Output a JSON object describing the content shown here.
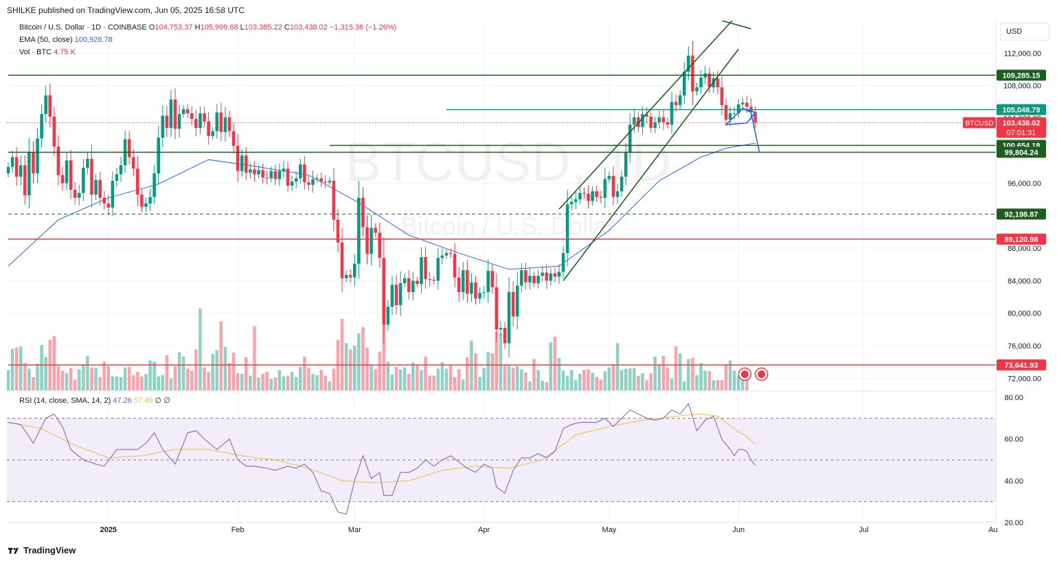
{
  "header": {
    "published": "SHILKE published on TradingView.com, Jun 05, 2025 16:58 UTC"
  },
  "legend": {
    "symbol": "Bitcoin / U.S. Dollar · 1D · COINBASE",
    "o_label": "O",
    "o_value": "104,753.37",
    "h_label": "H",
    "h_value": "105,999.68",
    "l_label": "L",
    "l_value": "103,385.22",
    "c_label": "C",
    "c_value": "103,438.02",
    "change": "−1,315.36 (−1.26%)",
    "ema_label": "EMA (50, close)",
    "ema_value": "100,926.78",
    "vol_label": "Vol · BTC",
    "vol_value": "4.75 K",
    "rsi_label": "RSI (14, close, SMA, 14, 2)",
    "rsi_value": "47.26",
    "rsi_sma_value": "57.49",
    "rsi_extra1": "∅",
    "rsi_extra2": "∅"
  },
  "watermark": {
    "symbol": "BTCUSD, 1D",
    "name": "Bitcoin / U.S. Dollar"
  },
  "currency": "USD",
  "footer": {
    "brand": "TradingView"
  },
  "colors": {
    "up": "#089981",
    "down": "#F23645",
    "ema": "#2962FF",
    "rsi": "#7E57C2",
    "rsi_sma": "#EDBF3F",
    "level_green": "#1B5E20",
    "level_teal": "#089981",
    "level_red": "#F23645",
    "drawing_blue": "#2962FF"
  },
  "chart_data": {
    "type": "candlestick",
    "timeframe": "1D",
    "ylim": [
      70500,
      116000
    ],
    "y_ticks": [
      "112,000.00",
      "108,000.00",
      "104,000.00",
      "100,000.00",
      "96,000.00",
      "92,000.00",
      "88,000.00",
      "84,000.00",
      "80,000.00",
      "76,000.00",
      "72,000.00"
    ],
    "y_tick_values": [
      112000,
      108000,
      104000,
      100000,
      96000,
      92000,
      88000,
      84000,
      80000,
      76000,
      72000
    ],
    "x_labels": [
      {
        "label": "2025",
        "day": 24
      },
      {
        "label": "Feb",
        "day": 55
      },
      {
        "label": "Mar",
        "day": 83
      },
      {
        "label": "Apr",
        "day": 114
      },
      {
        "label": "May",
        "day": 144
      },
      {
        "label": "Jun",
        "day": 175
      },
      {
        "label": "Jul",
        "day": 205
      },
      {
        "label": "Au",
        "day": 236
      }
    ],
    "x_range_days": [
      0,
      237
    ],
    "last_day": 179,
    "anchors": [
      [
        0,
        98000
      ],
      [
        1,
        99200
      ],
      [
        2,
        96800
      ],
      [
        3,
        98200
      ],
      [
        4,
        94500
      ],
      [
        5,
        99800
      ],
      [
        6,
        97200
      ],
      [
        7,
        101500
      ],
      [
        8,
        104500
      ],
      [
        9,
        106800
      ],
      [
        10,
        104200
      ],
      [
        11,
        100500
      ],
      [
        12,
        97000
      ],
      [
        13,
        96000
      ],
      [
        14,
        98800
      ],
      [
        15,
        95200
      ],
      [
        16,
        94200
      ],
      [
        17,
        94800
      ],
      [
        18,
        97900
      ],
      [
        19,
        99000
      ],
      [
        20,
        94600
      ],
      [
        21,
        96400
      ],
      [
        22,
        94200
      ],
      [
        23,
        93500
      ],
      [
        24,
        93000
      ],
      [
        25,
        96300
      ],
      [
        26,
        97100
      ],
      [
        27,
        98200
      ],
      [
        28,
        101400
      ],
      [
        29,
        99200
      ],
      [
        30,
        97800
      ],
      [
        31,
        94600
      ],
      [
        32,
        93100
      ],
      [
        33,
        93500
      ],
      [
        34,
        94300
      ],
      [
        35,
        97200
      ],
      [
        36,
        101600
      ],
      [
        37,
        104300
      ],
      [
        38,
        102800
      ],
      [
        39,
        106300
      ],
      [
        40,
        102700
      ],
      [
        41,
        104500
      ],
      [
        42,
        105100
      ],
      [
        43,
        104600
      ],
      [
        44,
        103900
      ],
      [
        45,
        102800
      ],
      [
        46,
        104600
      ],
      [
        47,
        103600
      ],
      [
        48,
        101800
      ],
      [
        49,
        102400
      ],
      [
        50,
        104700
      ],
      [
        51,
        102300
      ],
      [
        52,
        104100
      ],
      [
        53,
        102400
      ],
      [
        54,
        100600
      ],
      [
        55,
        97500
      ],
      [
        56,
        99400
      ],
      [
        57,
        97300
      ],
      [
        58,
        97700
      ],
      [
        59,
        97100
      ],
      [
        60,
        97600
      ],
      [
        61,
        96700
      ],
      [
        62,
        96600
      ],
      [
        63,
        97500
      ],
      [
        64,
        96500
      ],
      [
        65,
        97500
      ],
      [
        66,
        97800
      ],
      [
        67,
        95700
      ],
      [
        68,
        96200
      ],
      [
        69,
        96600
      ],
      [
        70,
        98300
      ],
      [
        71,
        96100
      ],
      [
        72,
        95800
      ],
      [
        73,
        96500
      ],
      [
        74,
        96600
      ],
      [
        75,
        96200
      ],
      [
        76,
        96100
      ],
      [
        77,
        96300
      ],
      [
        78,
        91500
      ],
      [
        79,
        88700
      ],
      [
        80,
        84300
      ],
      [
        81,
        84700
      ],
      [
        82,
        84400
      ],
      [
        83,
        86100
      ],
      [
        84,
        94200
      ],
      [
        85,
        90600
      ],
      [
        86,
        87300
      ],
      [
        87,
        90500
      ],
      [
        88,
        89900
      ],
      [
        89,
        86800
      ],
      [
        90,
        78600
      ],
      [
        91,
        80800
      ],
      [
        92,
        83500
      ],
      [
        93,
        81000
      ],
      [
        94,
        83700
      ],
      [
        95,
        84300
      ],
      [
        96,
        82600
      ],
      [
        97,
        84000
      ],
      [
        98,
        83600
      ],
      [
        99,
        86900
      ],
      [
        100,
        84200
      ],
      [
        101,
        84100
      ],
      [
        102,
        84000
      ],
      [
        103,
        86800
      ],
      [
        104,
        87100
      ],
      [
        105,
        87400
      ],
      [
        106,
        87300
      ],
      [
        107,
        84400
      ],
      [
        108,
        82600
      ],
      [
        109,
        85300
      ],
      [
        110,
        82400
      ],
      [
        111,
        83800
      ],
      [
        112,
        81800
      ],
      [
        113,
        82500
      ],
      [
        114,
        82600
      ],
      [
        115,
        85200
      ],
      [
        116,
        83200
      ],
      [
        117,
        78000
      ],
      [
        118,
        78200
      ],
      [
        119,
        76300
      ],
      [
        120,
        82600
      ],
      [
        121,
        79600
      ],
      [
        122,
        83400
      ],
      [
        123,
        85300
      ],
      [
        124,
        83800
      ],
      [
        125,
        84600
      ],
      [
        126,
        83700
      ],
      [
        127,
        84600
      ],
      [
        128,
        85000
      ],
      [
        129,
        84000
      ],
      [
        130,
        84900
      ],
      [
        131,
        84500
      ],
      [
        132,
        85100
      ],
      [
        133,
        87400
      ],
      [
        134,
        93400
      ],
      [
        135,
        93700
      ],
      [
        136,
        94000
      ],
      [
        137,
        94800
      ],
      [
        138,
        94700
      ],
      [
        139,
        93800
      ],
      [
        140,
        95000
      ],
      [
        141,
        94300
      ],
      [
        142,
        94200
      ],
      [
        143,
        96500
      ],
      [
        144,
        96900
      ],
      [
        145,
        94300
      ],
      [
        146,
        95000
      ],
      [
        147,
        96800
      ],
      [
        148,
        99800
      ],
      [
        149,
        103200
      ],
      [
        150,
        104100
      ],
      [
        151,
        102900
      ],
      [
        152,
        104500
      ],
      [
        153,
        104200
      ],
      [
        154,
        102800
      ],
      [
        155,
        103500
      ],
      [
        156,
        104100
      ],
      [
        157,
        103500
      ],
      [
        158,
        103200
      ],
      [
        159,
        106000
      ],
      [
        160,
        105600
      ],
      [
        161,
        106800
      ],
      [
        162,
        109700
      ],
      [
        163,
        111700
      ],
      [
        164,
        107300
      ],
      [
        165,
        107800
      ],
      [
        166,
        109000
      ],
      [
        167,
        109500
      ],
      [
        168,
        107800
      ],
      [
        169,
        108900
      ],
      [
        170,
        107800
      ],
      [
        171,
        105600
      ],
      [
        172,
        103800
      ],
      [
        173,
        104600
      ],
      [
        174,
        104600
      ],
      [
        175,
        105700
      ],
      [
        176,
        105900
      ],
      [
        177,
        105400
      ],
      [
        178,
        104750
      ],
      [
        179,
        103438
      ]
    ],
    "ema_points": [
      [
        0,
        85800
      ],
      [
        12,
        91500
      ],
      [
        24,
        94200
      ],
      [
        36,
        95900
      ],
      [
        48,
        98900
      ],
      [
        60,
        98000
      ],
      [
        72,
        97000
      ],
      [
        84,
        93600
      ],
      [
        96,
        89600
      ],
      [
        108,
        87400
      ],
      [
        120,
        85400
      ],
      [
        132,
        85800
      ],
      [
        144,
        90200
      ],
      [
        156,
        96300
      ],
      [
        166,
        99200
      ],
      [
        172,
        100300
      ],
      [
        176,
        100650
      ],
      [
        179,
        100927
      ]
    ],
    "levels": [
      {
        "name": "level-109285",
        "value": 109285.15,
        "label": "109,285.15",
        "color": "#1B5E20",
        "from_day": 0,
        "style": "solid"
      },
      {
        "name": "level-105048",
        "value": 105048.79,
        "label": "105,048.79",
        "color": "#089981",
        "from_day": 105,
        "style": "solid"
      },
      {
        "name": "level-100654",
        "value": 100654.18,
        "label": "100,654.18",
        "color": "#1B5E20",
        "from_day": 77,
        "style": "solid"
      },
      {
        "name": "level-99804",
        "value": 99804.24,
        "label": "99,804.24",
        "color": "#1B5E20",
        "from_day": 0,
        "style": "solid"
      },
      {
        "name": "level-92198",
        "value": 92198.87,
        "label": "92,198.87",
        "color": "#1B5E20",
        "from_day": 0,
        "style": "dashed"
      },
      {
        "name": "level-89120",
        "value": 89120.98,
        "label": "89,120.98",
        "color": "#F23645",
        "from_day": 0,
        "style": "solid"
      },
      {
        "name": "level-73641",
        "value": 73641.93,
        "label": "73,641.93",
        "color": "#F23645",
        "from_day": 0,
        "style": "solid"
      }
    ],
    "price_label": {
      "symbol": "BTCUSD",
      "value": "103,438.02",
      "countdown": "07:01:31",
      "price": 103438.02
    },
    "channel_lines": [
      {
        "d1": 133,
        "p1": 84000,
        "d2": 175,
        "p2": 112500
      },
      {
        "d1": 132,
        "p1": 92800,
        "d2": 174,
        "p2": 116300
      },
      {
        "d1": 178,
        "p1": 115000,
        "d2": 171,
        "p2": 116000
      }
    ],
    "flag": [
      [
        172,
        103200
      ],
      [
        176,
        105200
      ],
      [
        179,
        104700
      ],
      [
        177,
        103400
      ]
    ],
    "projection": [
      [
        176,
        105200
      ],
      [
        178,
        104700
      ],
      [
        180,
        99800
      ]
    ],
    "volume": [
      3.2,
      6.5,
      6.7,
      6.9,
      4.3,
      3.4,
      2.1,
      4.2,
      7.1,
      5.2,
      7.9,
      8.5,
      3.8,
      3.1,
      2.7,
      3.5,
      1.7,
      3.3,
      4.1,
      5.4,
      3.6,
      3.5,
      2.1,
      4.5,
      3.8,
      2.2,
      2.2,
      2.1,
      3.6,
      3.7,
      2.4,
      2.9,
      2.2,
      2.6,
      4.7,
      4.5,
      2.2,
      2.4,
      5.5,
      1.9,
      3.8,
      6.0,
      5.3,
      3.4,
      3.1,
      6.4,
      12.8,
      3.6,
      2.9,
      5.7,
      6.3,
      10.8,
      6.8,
      4.3,
      5.9,
      2.7,
      2.6,
      5.2,
      2.3,
      10.0,
      2.0,
      2.6,
      2.9,
      1.8,
      2.0,
      3.2,
      2.2,
      2.3,
      2.9,
      2.1,
      3.7,
      5.3,
      3.5,
      2.6,
      2.4,
      3.2,
      2.3,
      1.4,
      3.4,
      7.9,
      11.2,
      7.4,
      6.4,
      7.0,
      8.9,
      9.9,
      6.7,
      4.1,
      3.3,
      6.1,
      11.2,
      4.5,
      2.5,
      3.7,
      3.3,
      3.6,
      2.6,
      4.4,
      3.9,
      3.2,
      5.3,
      2.3,
      2.3,
      3.4,
      4.4,
      3.4,
      3.9,
      2.1,
      3.3,
      1.7,
      5.2,
      7.8,
      5.8,
      2.1,
      3.5,
      6.0,
      5.8,
      9.2,
      8.9,
      4.0,
      3.9,
      3.5,
      3.8,
      3.3,
      2.8,
      1.4,
      4.9,
      3.2,
      1.5,
      1.3,
      7.5,
      8.4,
      5.1,
      3.1,
      2.3,
      3.2,
      1.6,
      2.6,
      3.2,
      3.3,
      2.8,
      2.1,
      1.7,
      3.0,
      3.6,
      4.0,
      7.4,
      3.2,
      3.4,
      3.5,
      3.5,
      2.3,
      2.7,
      1.6,
      2.7,
      5.3,
      4.1,
      5.4,
      3.6,
      1.9,
      6.9,
      5.8,
      1.4,
      4.9,
      5.1,
      2.4,
      4.3,
      3.1,
      3.0,
      1.6,
      1.6,
      1.6,
      4.0,
      4.7,
      3.1,
      2.3,
      1.9,
      1.8
    ],
    "volume_ylim": [
      0,
      26
    ],
    "rsi_ylim": [
      20,
      82
    ],
    "rsi_ticks": [
      "80.00",
      "60.00",
      "40.00",
      "20.00"
    ],
    "rsi_tick_values": [
      80,
      60,
      40,
      20
    ],
    "rsi_bands": [
      70,
      50,
      30
    ],
    "rsi_points": [
      [
        0,
        68
      ],
      [
        3,
        67
      ],
      [
        6,
        58
      ],
      [
        9,
        70
      ],
      [
        11,
        72
      ],
      [
        13,
        66
      ],
      [
        15,
        55
      ],
      [
        18,
        50
      ],
      [
        21,
        48
      ],
      [
        23,
        47
      ],
      [
        26,
        55
      ],
      [
        28,
        55
      ],
      [
        31,
        55
      ],
      [
        33,
        58
      ],
      [
        35,
        63
      ],
      [
        37,
        55
      ],
      [
        40,
        48
      ],
      [
        43,
        63
      ],
      [
        45,
        64
      ],
      [
        47,
        60
      ],
      [
        50,
        55
      ],
      [
        53,
        60
      ],
      [
        55,
        50
      ],
      [
        57,
        47
      ],
      [
        59,
        47
      ],
      [
        62,
        46
      ],
      [
        64,
        45
      ],
      [
        67,
        47
      ],
      [
        69,
        46
      ],
      [
        71,
        48
      ],
      [
        73,
        44
      ],
      [
        75,
        35
      ],
      [
        77,
        34
      ],
      [
        79,
        25
      ],
      [
        81,
        24
      ],
      [
        83,
        40
      ],
      [
        85,
        52
      ],
      [
        87,
        41
      ],
      [
        89,
        44
      ],
      [
        90,
        33
      ],
      [
        92,
        33
      ],
      [
        94,
        44
      ],
      [
        96,
        44
      ],
      [
        98,
        46
      ],
      [
        100,
        50
      ],
      [
        102,
        47
      ],
      [
        104,
        50
      ],
      [
        106,
        52
      ],
      [
        108,
        49
      ],
      [
        110,
        46
      ],
      [
        112,
        44
      ],
      [
        114,
        48
      ],
      [
        116,
        46
      ],
      [
        117,
        37
      ],
      [
        119,
        34
      ],
      [
        121,
        45
      ],
      [
        123,
        51
      ],
      [
        125,
        51
      ],
      [
        127,
        53
      ],
      [
        129,
        51
      ],
      [
        131,
        54
      ],
      [
        133,
        65
      ],
      [
        135,
        67
      ],
      [
        137,
        68
      ],
      [
        139,
        68
      ],
      [
        141,
        68
      ],
      [
        143,
        70
      ],
      [
        145,
        66
      ],
      [
        147,
        70
      ],
      [
        149,
        74
      ],
      [
        151,
        72
      ],
      [
        153,
        70
      ],
      [
        155,
        69
      ],
      [
        157,
        70
      ],
      [
        159,
        74
      ],
      [
        161,
        72
      ],
      [
        163,
        77
      ],
      [
        165,
        64
      ],
      [
        167,
        69
      ],
      [
        169,
        71
      ],
      [
        171,
        60
      ],
      [
        173,
        55
      ],
      [
        174,
        52
      ],
      [
        175,
        55
      ],
      [
        176,
        55
      ],
      [
        177,
        54
      ],
      [
        178,
        50
      ],
      [
        179,
        47.3
      ]
    ],
    "rsi_sma_points": [
      [
        0,
        68
      ],
      [
        8,
        65
      ],
      [
        16,
        57
      ],
      [
        24,
        51
      ],
      [
        32,
        52
      ],
      [
        40,
        55
      ],
      [
        48,
        55
      ],
      [
        56,
        52
      ],
      [
        64,
        50
      ],
      [
        72,
        46
      ],
      [
        80,
        40
      ],
      [
        88,
        39
      ],
      [
        96,
        40
      ],
      [
        104,
        45
      ],
      [
        112,
        47
      ],
      [
        120,
        46
      ],
      [
        128,
        50
      ],
      [
        136,
        62
      ],
      [
        144,
        66
      ],
      [
        152,
        69
      ],
      [
        160,
        71
      ],
      [
        166,
        72
      ],
      [
        170,
        71
      ],
      [
        174,
        65
      ],
      [
        177,
        61
      ],
      [
        179,
        57.5
      ]
    ]
  }
}
